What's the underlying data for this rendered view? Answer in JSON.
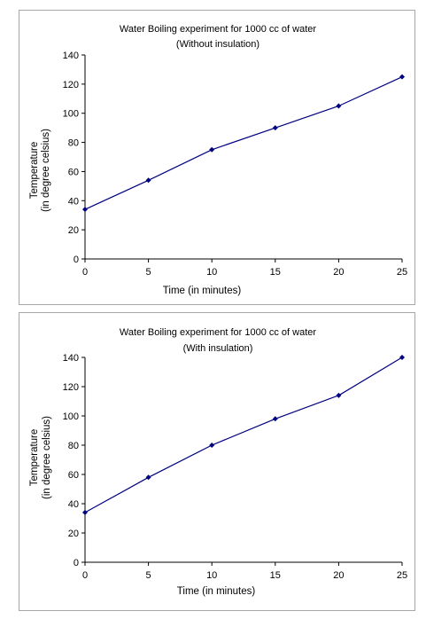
{
  "chart_data": [
    {
      "type": "line",
      "title": "Water Boiling experiment for 1000 cc of water",
      "subtitle": "(Without insulation)",
      "xlabel": "Time (in minutes)",
      "ylabel_lines": [
        "Temperature",
        "(in degree celsius)"
      ],
      "x": [
        0,
        5,
        10,
        15,
        20,
        25
      ],
      "series": [
        {
          "values": [
            34,
            54,
            75,
            90,
            105,
            125
          ]
        }
      ],
      "xlim": [
        0,
        25
      ],
      "ylim": [
        0,
        140
      ],
      "xticks": [
        "0",
        "5",
        "10",
        "15",
        "20",
        "25"
      ],
      "yticks": [
        "0",
        "20",
        "40",
        "60",
        "80",
        "100",
        "120",
        "140"
      ],
      "grid": false,
      "legend": "none",
      "line_color": "#000080",
      "marker": "diamond"
    },
    {
      "type": "line",
      "title": "Water Boiling experiment for 1000 cc of water",
      "subtitle": "(With insulation)",
      "xlabel": "Time (in minutes)",
      "ylabel_lines": [
        "Temperature",
        "(in degree celsius)"
      ],
      "x": [
        0,
        5,
        10,
        15,
        20,
        25
      ],
      "series": [
        {
          "values": [
            34,
            58,
            80,
            98,
            114,
            140
          ]
        }
      ],
      "xlim": [
        0,
        25
      ],
      "ylim": [
        0,
        140
      ],
      "xticks": [
        "0",
        "5",
        "10",
        "15",
        "20",
        "25"
      ],
      "yticks": [
        "0",
        "20",
        "40",
        "60",
        "80",
        "100",
        "120",
        "140"
      ],
      "grid": false,
      "legend": "none",
      "line_color": "#000080",
      "marker": "diamond"
    }
  ]
}
